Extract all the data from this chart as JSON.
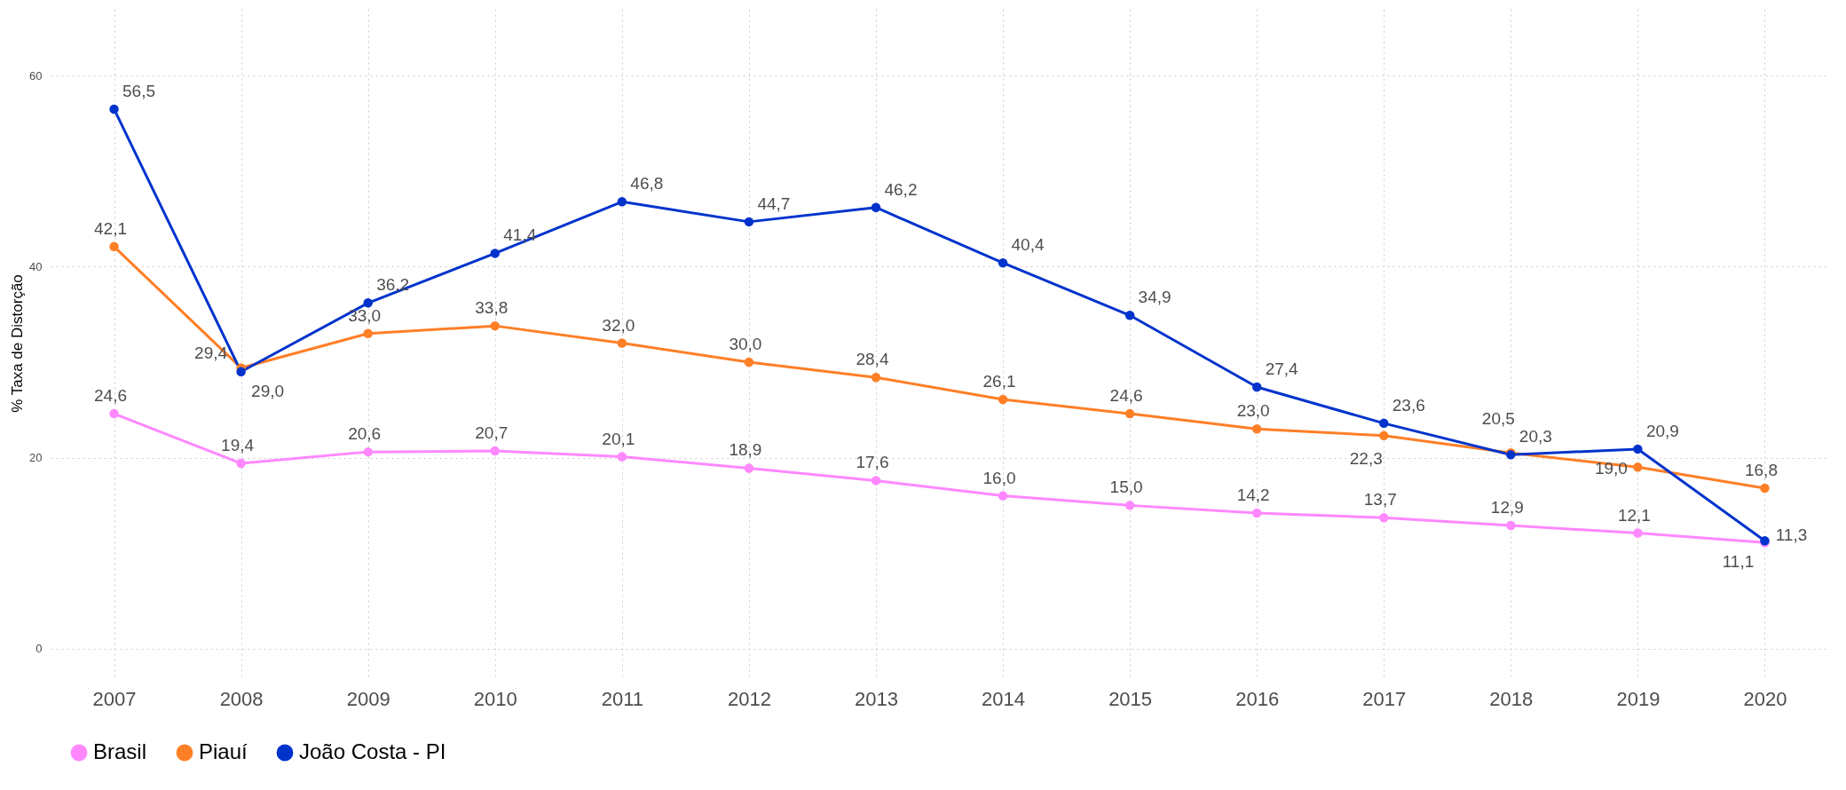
{
  "chart_data": {
    "type": "line",
    "ylabel": "% Taxa de Distorção",
    "categories": [
      "2007",
      "2008",
      "2009",
      "2010",
      "2011",
      "2012",
      "2013",
      "2014",
      "2015",
      "2016",
      "2017",
      "2018",
      "2019",
      "2020"
    ],
    "series": [
      {
        "name": "Brasil",
        "color": "#ff88ff",
        "values": [
          24.6,
          19.4,
          20.6,
          20.7,
          20.1,
          18.9,
          17.6,
          16.0,
          15.0,
          14.2,
          13.7,
          12.9,
          12.1,
          11.1
        ],
        "value_labels": [
          "24,6",
          "19,4",
          "20,6",
          "20,7",
          "20,1",
          "18,9",
          "17,6",
          "16,0",
          "15,0",
          "14,2",
          "13,7",
          "12,9",
          "12,1",
          "11,1"
        ]
      },
      {
        "name": "Piauí",
        "color": "#ff7f27",
        "values": [
          42.1,
          29.4,
          33.0,
          33.8,
          32.0,
          30.0,
          28.4,
          26.1,
          24.6,
          23.0,
          22.3,
          20.5,
          19.0,
          16.8
        ],
        "value_labels": [
          "42,1",
          "29,4",
          "33,0",
          "33,8",
          "32,0",
          "30,0",
          "28,4",
          "26,1",
          "24,6",
          "23,0",
          "22,3",
          "20,5",
          "19,0",
          "16,8"
        ]
      },
      {
        "name": "João Costa - PI",
        "color": "#0033cc",
        "values": [
          56.5,
          29.0,
          36.2,
          41.4,
          46.8,
          44.7,
          46.2,
          40.4,
          34.9,
          27.4,
          23.6,
          20.3,
          20.9,
          11.3
        ],
        "value_labels": [
          "56,5",
          "29,0",
          "36,2",
          "41,4",
          "46,8",
          "44,7",
          "46,2",
          "40,4",
          "34,9",
          "27,4",
          "23,6",
          "20,3",
          "20,9",
          "11,3"
        ]
      }
    ],
    "ylim": [
      -3,
      67
    ],
    "yticks": [
      0,
      20,
      40,
      60
    ],
    "grid": true,
    "legend": "bottom",
    "marker": "circle",
    "line_style": "solid"
  }
}
